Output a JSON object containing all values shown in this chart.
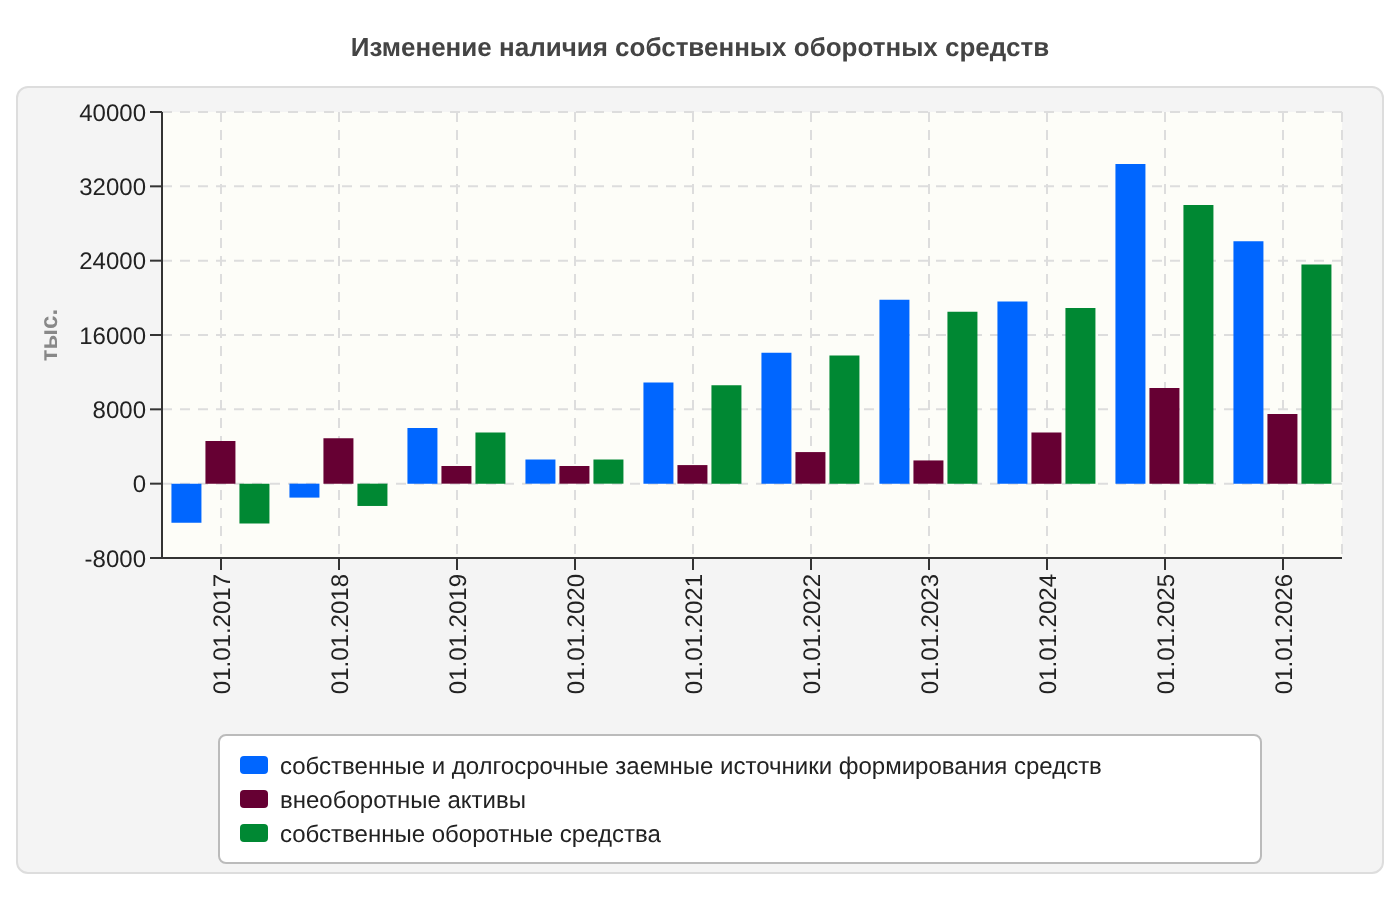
{
  "chart_data": {
    "type": "bar",
    "title": "Изменение наличия собственных оборотных средств",
    "ylabel": "тыс.",
    "categories": [
      "01.01.2017",
      "01.01.2018",
      "01.01.2019",
      "01.01.2020",
      "01.01.2021",
      "01.01.2022",
      "01.01.2023",
      "01.01.2024",
      "01.01.2025",
      "01.01.2026"
    ],
    "series": [
      {
        "name": "собственные и долгосрочные заемные источники формирования средств",
        "color": "#0066ff",
        "values": [
          -4200,
          -1500,
          6000,
          2600,
          10900,
          14100,
          19800,
          19600,
          34400,
          26100
        ]
      },
      {
        "name": "внеоборотные активы",
        "color": "#660033",
        "values": [
          4600,
          4900,
          1900,
          1900,
          2000,
          3400,
          2500,
          5500,
          10300,
          7500
        ]
      },
      {
        "name": "собственные оборотные средства",
        "color": "#008833",
        "values": [
          -4300,
          -2400,
          5500,
          2600,
          10600,
          13800,
          18500,
          18900,
          30000,
          23600
        ]
      }
    ],
    "ylim": [
      -8000,
      40000
    ],
    "yticks": [
      -8000,
      0,
      8000,
      16000,
      24000,
      32000,
      40000
    ],
    "grid": true,
    "legend": "bottom"
  }
}
